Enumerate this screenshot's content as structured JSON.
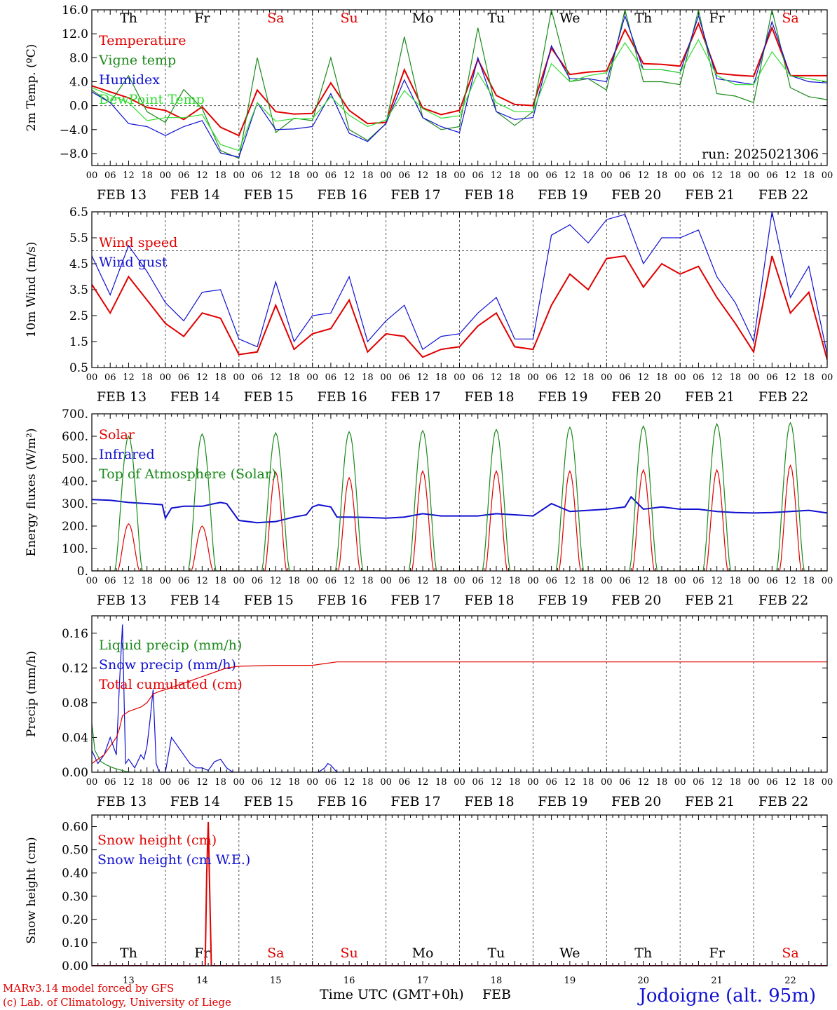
{
  "meta": {
    "model_line": "MARv3.14 model forced by GFS",
    "copyright_line": "(c) Lab. of Climatology, University of Liege",
    "station": "Jodoigne (alt. 95m)",
    "xaxis_label": "Time UTC (GMT+0h)",
    "xaxis_month": "FEB",
    "run_label": "run: 2025021306",
    "hour_ticks": [
      "00",
      "06",
      "12",
      "18"
    ],
    "final_hour": "00",
    "day_labels": [
      "FEB 13",
      "FEB 14",
      "FEB 15",
      "FEB 16",
      "FEB 17",
      "FEB 18",
      "FEB 19",
      "FEB 20",
      "FEB 21",
      "FEB 22"
    ],
    "weekday_labels": [
      "Th",
      "Fr",
      "Sa",
      "Su",
      "Mo",
      "Tu",
      "We",
      "Th",
      "Fr",
      "Sa"
    ],
    "weekday_colors": [
      "#000000",
      "#000000",
      "#e00000",
      "#e00000",
      "#000000",
      "#000000",
      "#000000",
      "#000000",
      "#000000",
      "#e00000"
    ],
    "bottom_day_numbers": [
      "13",
      "14",
      "15",
      "16",
      "17",
      "18",
      "19",
      "20",
      "21",
      "22"
    ],
    "colors": {
      "red": "#e00000",
      "green": "#1a8a1a",
      "blue": "#1010d0",
      "lightgreen": "#33dd33"
    }
  },
  "chart_data": [
    {
      "type": "line",
      "ylabel": "2m Temp. (ºC)",
      "ylim": [
        -10,
        16
      ],
      "yticks": [
        -8,
        -4,
        0,
        4,
        8,
        12,
        16
      ],
      "ytick_labels": [
        "−8.0",
        "−4.0",
        "0.0",
        "4.0",
        "8.0",
        "12.0",
        "16.0"
      ],
      "ref_line": 0,
      "show_weekdays": true,
      "xlim_hours": [
        0,
        240
      ],
      "series": [
        {
          "name": "Temperature",
          "color": "red",
          "width": 2,
          "x": [
            0,
            12,
            18,
            24,
            30,
            36,
            42,
            48,
            54,
            60,
            66,
            72,
            78,
            84,
            90,
            96,
            102,
            108,
            114,
            120,
            126,
            132,
            138,
            144,
            150,
            156,
            162,
            168,
            174,
            180,
            186,
            192,
            198,
            204,
            210,
            216,
            222,
            228,
            234,
            240
          ],
          "y": [
            3.3,
            1.3,
            -0.3,
            -0.8,
            -2.3,
            -0.2,
            -3.6,
            -5.0,
            2.6,
            -1.0,
            -1.4,
            -1.3,
            3.8,
            -0.8,
            -3.0,
            -2.8,
            6.0,
            -0.4,
            -1.5,
            -0.8,
            7.7,
            1.7,
            0.2,
            0.0,
            9.6,
            5.2,
            5.6,
            5.8,
            12.7,
            7.0,
            6.9,
            6.6,
            13.7,
            5.4,
            5.1,
            4.9,
            13.0,
            5.0,
            5.0,
            5.0
          ]
        },
        {
          "name": "Vigne temp",
          "color": "green",
          "width": 1.2,
          "x": [
            0,
            6,
            12,
            18,
            24,
            30,
            36,
            42,
            48,
            54,
            60,
            66,
            72,
            78,
            84,
            90,
            96,
            102,
            108,
            114,
            120,
            126,
            132,
            138,
            144,
            150,
            156,
            162,
            168,
            174,
            180,
            186,
            192,
            198,
            204,
            210,
            216,
            222,
            228,
            234,
            240
          ],
          "y": [
            2.6,
            0.5,
            5.0,
            -1.0,
            -2.8,
            2.7,
            -0.5,
            -7.5,
            -8.8,
            8.0,
            -4.5,
            -2.1,
            -2.5,
            8.0,
            -4.0,
            -5.8,
            -3.0,
            11.5,
            -2.0,
            -4.0,
            -3.5,
            13.0,
            -1.0,
            -3.3,
            -1.0,
            16.0,
            4.0,
            4.5,
            2.6,
            16.0,
            4.0,
            4.0,
            3.5,
            16.0,
            2.0,
            1.6,
            0.5,
            16.0,
            3.0,
            1.5,
            1.0
          ]
        },
        {
          "name": "Humidex",
          "color": "blue",
          "width": 1.2,
          "x": [
            0,
            6,
            12,
            18,
            24,
            30,
            36,
            42,
            48,
            54,
            60,
            66,
            72,
            78,
            84,
            90,
            96,
            102,
            108,
            114,
            120,
            126,
            132,
            138,
            144,
            150,
            156,
            162,
            168,
            174,
            180,
            186,
            192,
            198,
            204,
            210,
            216,
            222,
            228,
            234,
            240
          ],
          "y": [
            2.3,
            0.5,
            -3.0,
            -3.5,
            -5.0,
            -3.5,
            -2.5,
            -7.9,
            -8.6,
            0.5,
            -4.0,
            -3.9,
            -3.5,
            2.0,
            -4.6,
            -6.0,
            -3.0,
            4.3,
            -2.0,
            -3.5,
            -4.5,
            8.0,
            -1.0,
            -2.3,
            -2.0,
            10.0,
            4.5,
            4.5,
            4.0,
            15.0,
            6.0,
            6.0,
            5.5,
            15.0,
            4.5,
            4.0,
            3.5,
            14.0,
            5.0,
            4.0,
            3.8
          ]
        },
        {
          "name": "DewPoint Temp",
          "color": "lightgreen",
          "width": 1.2,
          "x": [
            0,
            12,
            18,
            24,
            30,
            36,
            42,
            48,
            54,
            60,
            66,
            72,
            78,
            84,
            90,
            96,
            102,
            108,
            114,
            120,
            126,
            132,
            138,
            144,
            150,
            156,
            162,
            168,
            174,
            180,
            186,
            192,
            198,
            204,
            210,
            216,
            222,
            228,
            234,
            240
          ],
          "y": [
            3.0,
            0.5,
            -2.5,
            -2.0,
            -2.0,
            -1.5,
            -6.5,
            -7.5,
            0.5,
            -2.6,
            -2.2,
            -2.2,
            1.5,
            -1.6,
            -3.5,
            -2.4,
            2.5,
            -0.5,
            -2.1,
            -1.7,
            5.5,
            0.5,
            -1.0,
            -1.0,
            7.0,
            4.0,
            5.0,
            5.5,
            10.5,
            6.0,
            6.0,
            5.5,
            11.0,
            5.0,
            3.5,
            3.5,
            9.0,
            5.0,
            4.5,
            4.0
          ]
        }
      ]
    },
    {
      "type": "line",
      "ylabel": "10m Wind (m/s)",
      "ylim": [
        0.5,
        6.5
      ],
      "yticks": [
        0.5,
        1.5,
        2.5,
        3.5,
        4.5,
        5.5,
        6.5
      ],
      "ytick_labels": [
        "0.5",
        "1.5",
        "2.5",
        "3.5",
        "4.5",
        "5.5",
        "6.5"
      ],
      "ref_line": 5.0,
      "show_weekdays": false,
      "xlim_hours": [
        0,
        240
      ],
      "series": [
        {
          "name": "Wind speed",
          "color": "red",
          "width": 2,
          "x": [
            0,
            6,
            12,
            18,
            24,
            30,
            36,
            42,
            48,
            54,
            60,
            66,
            72,
            78,
            84,
            90,
            96,
            102,
            108,
            114,
            120,
            126,
            132,
            138,
            144,
            150,
            156,
            162,
            168,
            174,
            180,
            186,
            192,
            198,
            204,
            210,
            216,
            222,
            228,
            234,
            240
          ],
          "y": [
            3.7,
            2.6,
            4.0,
            3.1,
            2.2,
            1.7,
            2.6,
            2.4,
            1.0,
            1.1,
            2.9,
            1.2,
            1.8,
            2.0,
            3.1,
            1.1,
            1.8,
            1.7,
            0.9,
            1.2,
            1.3,
            2.1,
            2.6,
            1.3,
            1.2,
            2.9,
            4.1,
            3.5,
            4.7,
            4.8,
            3.6,
            4.5,
            4.1,
            4.4,
            3.2,
            2.2,
            1.1,
            4.8,
            2.6,
            3.4,
            0.8
          ]
        },
        {
          "name": "Wind gust",
          "color": "blue",
          "width": 1.2,
          "x": [
            0,
            6,
            12,
            18,
            24,
            30,
            36,
            42,
            48,
            54,
            60,
            66,
            72,
            78,
            84,
            90,
            96,
            102,
            108,
            114,
            120,
            126,
            132,
            138,
            144,
            150,
            156,
            162,
            168,
            174,
            180,
            186,
            192,
            198,
            204,
            210,
            216,
            222,
            228,
            234,
            240
          ],
          "y": [
            4.8,
            3.3,
            5.2,
            4.2,
            3.0,
            2.3,
            3.4,
            3.5,
            1.6,
            1.3,
            3.8,
            1.5,
            2.5,
            2.6,
            4.0,
            1.5,
            2.3,
            2.9,
            1.2,
            1.7,
            1.8,
            2.6,
            3.2,
            1.6,
            1.6,
            5.6,
            6.0,
            5.3,
            6.2,
            6.4,
            4.5,
            5.5,
            5.5,
            5.8,
            4.0,
            3.0,
            1.5,
            6.5,
            3.2,
            4.4,
            1.0
          ]
        }
      ]
    },
    {
      "type": "line",
      "ylabel": "Energy fluxes (W/m²)",
      "ylim": [
        0,
        700
      ],
      "yticks": [
        0,
        100,
        200,
        300,
        400,
        500,
        600,
        700
      ],
      "ytick_labels": [
        "0.",
        "100.",
        "200.",
        "300.",
        "400.",
        "500.",
        "600.",
        "700."
      ],
      "ref_line": null,
      "show_weekdays": false,
      "xlim_hours": [
        0,
        240
      ],
      "series": [
        {
          "name": "Solar",
          "color": "red",
          "width": 1.2,
          "peaks": [
            210,
            200,
            440,
            415,
            445,
            445,
            445,
            450,
            450,
            470
          ],
          "x": [],
          "y": []
        },
        {
          "name": "Infrared",
          "color": "blue",
          "width": 2,
          "x": [
            0,
            6,
            12,
            18,
            23,
            24,
            26,
            30,
            36,
            40,
            42,
            44,
            48,
            54,
            60,
            66,
            70,
            72,
            74,
            78,
            80,
            84,
            90,
            96,
            102,
            108,
            114,
            120,
            126,
            132,
            138,
            144,
            150,
            156,
            162,
            168,
            174,
            176,
            180,
            186,
            192,
            198,
            204,
            210,
            216,
            222,
            228,
            234,
            240
          ],
          "y": [
            318,
            315,
            305,
            300,
            295,
            235,
            280,
            288,
            288,
            300,
            305,
            300,
            225,
            215,
            220,
            240,
            250,
            285,
            295,
            285,
            240,
            240,
            238,
            235,
            240,
            255,
            245,
            245,
            245,
            255,
            250,
            245,
            300,
            265,
            270,
            275,
            285,
            330,
            275,
            285,
            275,
            275,
            265,
            260,
            258,
            260,
            265,
            270,
            258
          ]
        },
        {
          "name": "Top of Atmosphere (Solar)",
          "color": "green",
          "width": 1.2,
          "peaks": [
            600,
            610,
            615,
            620,
            625,
            630,
            640,
            645,
            655,
            660
          ],
          "x": [],
          "y": []
        }
      ]
    },
    {
      "type": "line",
      "ylabel": "Precip (mm/h)",
      "ylim": [
        0,
        0.18
      ],
      "yticks": [
        0,
        0.04,
        0.08,
        0.12,
        0.16
      ],
      "ytick_labels": [
        "0.00",
        "0.04",
        "0.08",
        "0.12",
        "0.16"
      ],
      "ref_line": null,
      "show_weekdays": false,
      "xlim_hours": [
        0,
        240
      ],
      "series": [
        {
          "name": "Liquid precip (mm/h)",
          "color": "green",
          "width": 1.2,
          "x": [
            0,
            1,
            3,
            5,
            7,
            9,
            11,
            13,
            240
          ],
          "y": [
            0.056,
            0.025,
            0.012,
            0.008,
            0.005,
            0.003,
            0.001,
            0.0,
            0.0
          ]
        },
        {
          "name": "Snow precip (mm/h)",
          "color": "blue",
          "width": 1.2,
          "x": [
            0,
            2,
            4,
            6,
            8,
            9,
            10,
            11,
            12,
            13,
            14,
            16,
            17,
            18,
            19,
            20,
            21,
            22,
            24,
            26,
            28,
            30,
            32,
            34,
            36,
            38,
            40,
            42,
            44,
            46,
            48,
            74,
            76,
            77,
            78,
            80,
            240
          ],
          "y": [
            0.025,
            0.01,
            0.02,
            0.04,
            0.02,
            0.1,
            0.17,
            0.01,
            0.015,
            0.01,
            0.005,
            0.02,
            0.015,
            0.03,
            0.06,
            0.095,
            0.01,
            0.0,
            0.0,
            0.04,
            0.03,
            0.02,
            0.01,
            0.005,
            0.005,
            0.002,
            0.012,
            0.015,
            0.005,
            0.0,
            0.0,
            0.0,
            0.005,
            0.01,
            0.008,
            0.0,
            0.0
          ]
        },
        {
          "name": "Total cumulated (cm)",
          "color": "red",
          "width": 1.2,
          "x": [
            0,
            4,
            6,
            8,
            9,
            10,
            12,
            16,
            18,
            20,
            22,
            24,
            28,
            32,
            36,
            40,
            44,
            48,
            60,
            72,
            76,
            80,
            84,
            96,
            120,
            150,
            180,
            210,
            240
          ],
          "y": [
            0.01,
            0.02,
            0.03,
            0.04,
            0.05,
            0.065,
            0.07,
            0.075,
            0.08,
            0.09,
            0.093,
            0.095,
            0.1,
            0.105,
            0.11,
            0.115,
            0.12,
            0.122,
            0.123,
            0.123,
            0.125,
            0.127,
            0.127,
            0.127,
            0.127,
            0.127,
            0.127,
            0.127,
            0.127
          ]
        }
      ]
    },
    {
      "type": "line",
      "ylabel": "Snow height (cm)",
      "ylim": [
        0,
        0.65
      ],
      "yticks": [
        0,
        0.1,
        0.2,
        0.3,
        0.4,
        0.5,
        0.6
      ],
      "ytick_labels": [
        "0.00",
        "0.10",
        "0.20",
        "0.30",
        "0.40",
        "0.50",
        "0.60"
      ],
      "ref_line": null,
      "show_weekdays": true,
      "weekdays_at_bottom": true,
      "xlim_hours": [
        0,
        240
      ],
      "series": [
        {
          "name": "Snow height (cm)",
          "color": "red",
          "width": 2,
          "x": [
            0,
            37,
            37.5,
            38,
            38.5,
            39,
            240
          ],
          "y": [
            0,
            0,
            0.4,
            0.62,
            0.3,
            0,
            0
          ]
        },
        {
          "name": "Snow height (cm W.E.)",
          "color": "blue",
          "width": 1.2,
          "x": [
            0,
            240
          ],
          "y": [
            0,
            0
          ]
        }
      ]
    }
  ]
}
